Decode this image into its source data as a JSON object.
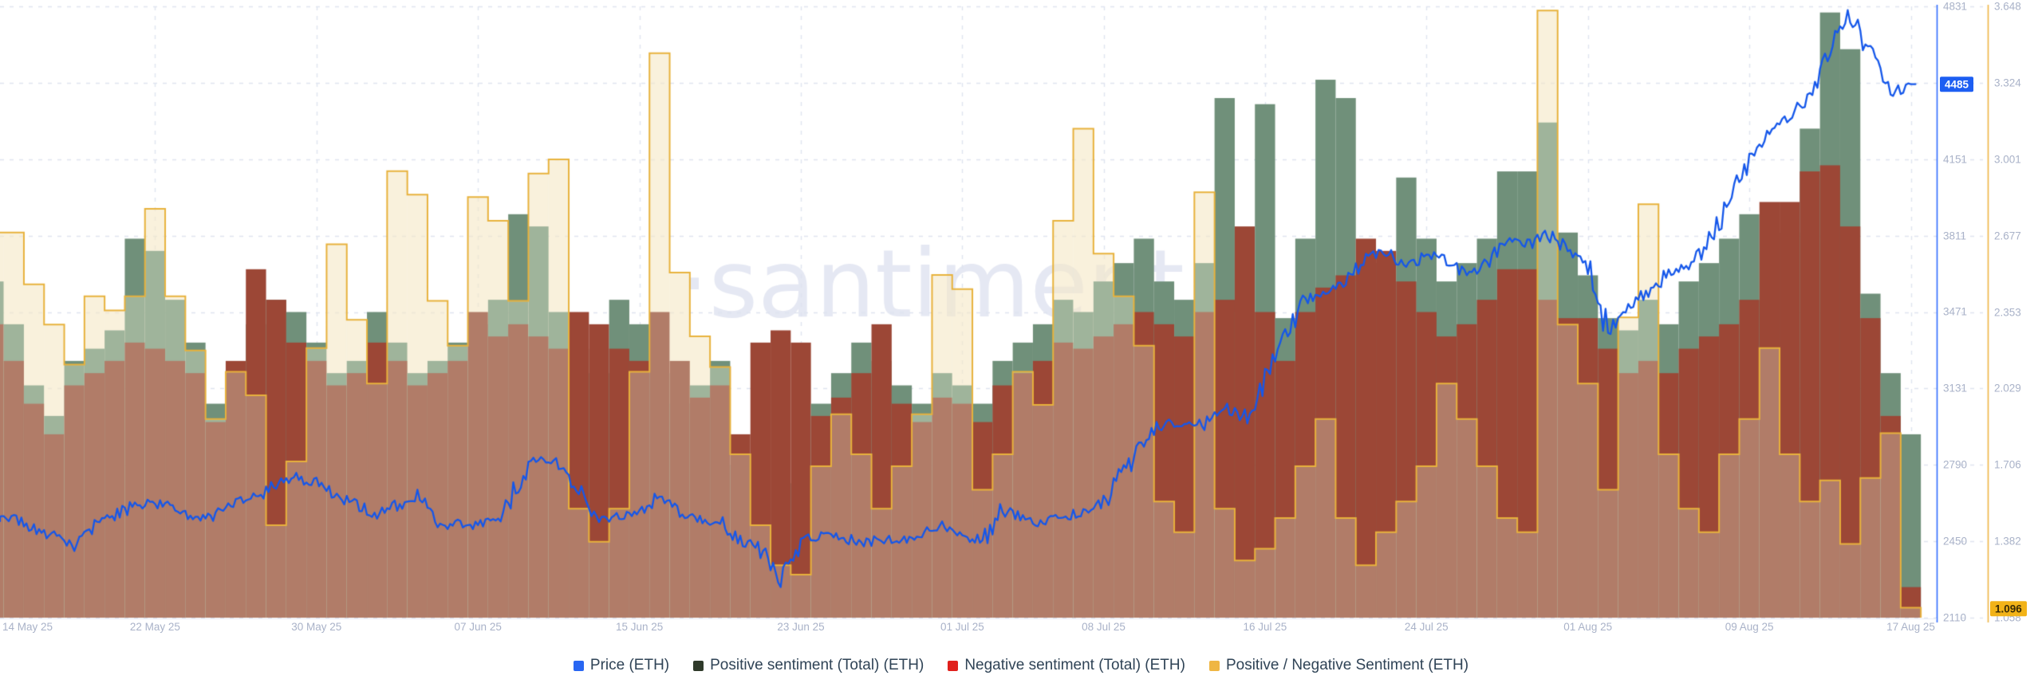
{
  "watermark": "·santiment",
  "legend": {
    "items": [
      {
        "label": "Price (ETH)",
        "color": "#2866f2"
      },
      {
        "label": "Positive sentiment (Total) (ETH)",
        "color": "#2f3a2a"
      },
      {
        "label": "Negative sentiment (Total) (ETH)",
        "color": "#e0201c"
      },
      {
        "label": "Positive / Negative Sentiment (ETH)",
        "color": "#efb643"
      }
    ]
  },
  "chart_data": {
    "type": "mixed",
    "title": "",
    "x_start_date": "14 May 25",
    "x_end_date": "17 Aug 25",
    "x_interval": "1 day",
    "x_tick_labels": [
      "14 May 25",
      "22 May 25",
      "30 May 25",
      "07 Jun 25",
      "15 Jun 25",
      "23 Jun 25",
      "01 Jul 25",
      "08 Jul 25",
      "16 Jul 25",
      "24 Jul 25",
      "01 Aug 25",
      "09 Aug 25",
      "17 Aug 25"
    ],
    "x_tick_day_indices": [
      0,
      8,
      16,
      24,
      32,
      40,
      48,
      55,
      63,
      71,
      79,
      87,
      95
    ],
    "price_axis": {
      "ticks": [
        4831,
        4151,
        3811,
        3471,
        3131,
        2790,
        2450,
        2110
      ],
      "range": [
        2110,
        4831
      ],
      "side": "right",
      "color": "#2f6bff"
    },
    "ratio_axis": {
      "ticks": [
        3.648,
        3.324,
        3.001,
        2.677,
        2.353,
        2.029,
        1.706,
        1.382,
        1.058
      ],
      "range": [
        1.058,
        3.648
      ],
      "side": "far-right",
      "color": "#efb643"
    },
    "price_badge": "4485",
    "ratio_badge": "1.096",
    "grid": "dashed",
    "legend_position": "bottom-center",
    "series": [
      {
        "name": "Price (ETH)",
        "type": "line",
        "axis": "price",
        "color": "#1557ea",
        "values": [
          2560,
          2545,
          2505,
          2475,
          2430,
          2520,
          2565,
          2610,
          2625,
          2590,
          2560,
          2555,
          2630,
          2650,
          2700,
          2740,
          2705,
          2655,
          2615,
          2560,
          2610,
          2650,
          2505,
          2535,
          2520,
          2545,
          2700,
          2820,
          2795,
          2675,
          2540,
          2560,
          2580,
          2655,
          2560,
          2545,
          2535,
          2460,
          2415,
          2290,
          2450,
          2480,
          2470,
          2440,
          2460,
          2450,
          2480,
          2520,
          2480,
          2450,
          2590,
          2550,
          2530,
          2560,
          2580,
          2620,
          2760,
          2880,
          2985,
          2965,
          2975,
          3045,
          3000,
          3160,
          3370,
          3520,
          3560,
          3590,
          3720,
          3740,
          3650,
          3730,
          3705,
          3640,
          3690,
          3795,
          3770,
          3820,
          3755,
          3690,
          3380,
          3475,
          3565,
          3640,
          3680,
          3780,
          3950,
          4170,
          4280,
          4340,
          4420,
          4650,
          4790,
          4620,
          4440,
          4485
        ]
      },
      {
        "name": "Positive sentiment (Total) (ETH)",
        "type": "bar",
        "axis": "hidden",
        "unit": "fraction of plot height",
        "color": "#70907a",
        "values": [
          0.55,
          0.48,
          0.38,
          0.33,
          0.42,
          0.44,
          0.47,
          0.62,
          0.6,
          0.52,
          0.45,
          0.35,
          0.38,
          0.48,
          0.52,
          0.5,
          0.45,
          0.4,
          0.42,
          0.5,
          0.45,
          0.4,
          0.42,
          0.45,
          0.48,
          0.52,
          0.66,
          0.64,
          0.5,
          0.44,
          0.4,
          0.52,
          0.48,
          0.4,
          0.35,
          0.38,
          0.42,
          0.25,
          0.12,
          0.1,
          0.22,
          0.35,
          0.4,
          0.45,
          0.42,
          0.38,
          0.35,
          0.4,
          0.38,
          0.35,
          0.42,
          0.45,
          0.48,
          0.52,
          0.5,
          0.55,
          0.58,
          0.62,
          0.55,
          0.52,
          0.58,
          0.85,
          0.5,
          0.84,
          0.49,
          0.62,
          0.88,
          0.85,
          0.55,
          0.58,
          0.72,
          0.62,
          0.55,
          0.58,
          0.62,
          0.73,
          0.73,
          0.81,
          0.63,
          0.56,
          0.49,
          0.47,
          0.52,
          0.48,
          0.55,
          0.58,
          0.62,
          0.66,
          0.6,
          0.63,
          0.8,
          0.99,
          0.93,
          0.53,
          0.4,
          0.3
        ]
      },
      {
        "name": "Negative sentiment (Total) (ETH)",
        "type": "bar",
        "axis": "hidden",
        "unit": "fraction of plot height",
        "color": "#9c4736",
        "values": [
          0.48,
          0.42,
          0.35,
          0.3,
          0.38,
          0.4,
          0.42,
          0.45,
          0.44,
          0.42,
          0.4,
          0.32,
          0.42,
          0.57,
          0.52,
          0.45,
          0.42,
          0.38,
          0.4,
          0.45,
          0.42,
          0.38,
          0.4,
          0.42,
          0.5,
          0.46,
          0.48,
          0.46,
          0.44,
          0.5,
          0.48,
          0.44,
          0.42,
          0.5,
          0.42,
          0.36,
          0.38,
          0.3,
          0.45,
          0.47,
          0.45,
          0.33,
          0.36,
          0.4,
          0.48,
          0.35,
          0.32,
          0.36,
          0.35,
          0.32,
          0.38,
          0.4,
          0.42,
          0.45,
          0.44,
          0.46,
          0.48,
          0.5,
          0.48,
          0.46,
          0.5,
          0.52,
          0.64,
          0.5,
          0.42,
          0.5,
          0.54,
          0.56,
          0.62,
          0.6,
          0.55,
          0.5,
          0.46,
          0.48,
          0.52,
          0.57,
          0.57,
          0.52,
          0.49,
          0.49,
          0.44,
          0.4,
          0.42,
          0.4,
          0.44,
          0.46,
          0.48,
          0.52,
          0.68,
          0.68,
          0.73,
          0.74,
          0.64,
          0.49,
          0.33,
          0.05
        ]
      },
      {
        "name": "Positive / Negative Sentiment (ETH)",
        "type": "step-area",
        "axis": "ratio",
        "color": "#e8b23c",
        "values": [
          2.69,
          2.69,
          2.47,
          2.3,
          2.13,
          2.42,
          2.36,
          2.42,
          2.79,
          2.42,
          2.19,
          1.9,
          2.1,
          2.0,
          1.45,
          1.72,
          2.2,
          2.64,
          2.32,
          2.05,
          2.95,
          2.85,
          2.4,
          2.21,
          2.84,
          2.74,
          2.4,
          2.94,
          3.0,
          1.52,
          1.38,
          1.52,
          2.1,
          3.45,
          2.52,
          2.25,
          2.12,
          1.75,
          1.45,
          1.28,
          1.24,
          1.7,
          1.92,
          1.75,
          1.52,
          1.7,
          1.92,
          2.51,
          2.45,
          1.6,
          1.75,
          2.1,
          1.96,
          2.74,
          3.13,
          2.6,
          2.42,
          2.21,
          1.55,
          1.42,
          2.86,
          1.52,
          1.3,
          1.35,
          1.48,
          1.7,
          1.9,
          1.48,
          1.28,
          1.42,
          1.55,
          1.7,
          2.05,
          1.9,
          1.7,
          1.48,
          1.42,
          3.63,
          2.3,
          2.05,
          1.6,
          2.33,
          2.81,
          1.75,
          1.52,
          1.42,
          1.75,
          1.9,
          2.2,
          1.75,
          1.55,
          1.64,
          1.37,
          1.65,
          1.84,
          1.1
        ]
      }
    ],
    "colors": {
      "sage_pos_with_ratio_fill": "#9fb49b",
      "moss_pos_plain": "#70907a",
      "brick_neg_plain": "#9c4736",
      "salmon_neg_with_ratio_fill": "#b17c68",
      "cream_ratio_fill": "#faf3dc",
      "ratio_line": "#e8b23c",
      "price_line": "#1557ea",
      "gridline": "#dfe4f0",
      "watermark": "#e5e8f3",
      "axis_text": "#a9b2c8"
    }
  }
}
